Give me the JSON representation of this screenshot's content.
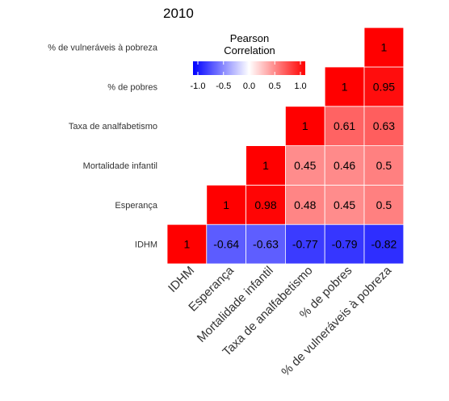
{
  "chart_data": {
    "type": "heatmap",
    "title": "2010",
    "legend": {
      "title_line1": "Pearson",
      "title_line2": "Correlation",
      "ticks": [
        "-1.0",
        "-0.5",
        "0.0",
        "0.5",
        "1.0"
      ],
      "range": [
        -1,
        1
      ],
      "colors": {
        "low": "#0000ff",
        "mid": "#ffffff",
        "high": "#ff0000"
      },
      "placement": "top"
    },
    "variables": [
      "IDHM",
      "Esperança",
      "Mortalidade infantil",
      "Taxa de analfabetismo",
      "% de pobres",
      "% de vulneráveis à pobreza"
    ],
    "cells": [
      {
        "row": 0,
        "col": 0,
        "value": 1,
        "label": "1"
      },
      {
        "row": 0,
        "col": 1,
        "value": -0.64,
        "label": "-0.64"
      },
      {
        "row": 0,
        "col": 2,
        "value": -0.63,
        "label": "-0.63"
      },
      {
        "row": 0,
        "col": 3,
        "value": -0.77,
        "label": "-0.77"
      },
      {
        "row": 0,
        "col": 4,
        "value": -0.79,
        "label": "-0.79"
      },
      {
        "row": 0,
        "col": 5,
        "value": -0.82,
        "label": "-0.82"
      },
      {
        "row": 1,
        "col": 1,
        "value": 1,
        "label": "1"
      },
      {
        "row": 1,
        "col": 2,
        "value": 0.98,
        "label": "0.98"
      },
      {
        "row": 1,
        "col": 3,
        "value": 0.48,
        "label": "0.48"
      },
      {
        "row": 1,
        "col": 4,
        "value": 0.45,
        "label": "0.45"
      },
      {
        "row": 1,
        "col": 5,
        "value": 0.5,
        "label": "0.5"
      },
      {
        "row": 2,
        "col": 2,
        "value": 1,
        "label": "1"
      },
      {
        "row": 2,
        "col": 3,
        "value": 0.45,
        "label": "0.45"
      },
      {
        "row": 2,
        "col": 4,
        "value": 0.46,
        "label": "0.46"
      },
      {
        "row": 2,
        "col": 5,
        "value": 0.5,
        "label": "0.5"
      },
      {
        "row": 3,
        "col": 3,
        "value": 1,
        "label": "1"
      },
      {
        "row": 3,
        "col": 4,
        "value": 0.61,
        "label": "0.61"
      },
      {
        "row": 3,
        "col": 5,
        "value": 0.63,
        "label": "0.63"
      },
      {
        "row": 4,
        "col": 4,
        "value": 1,
        "label": "1"
      },
      {
        "row": 4,
        "col": 5,
        "value": 0.95,
        "label": "0.95"
      },
      {
        "row": 5,
        "col": 5,
        "value": 1,
        "label": "1"
      }
    ],
    "grid": false
  }
}
